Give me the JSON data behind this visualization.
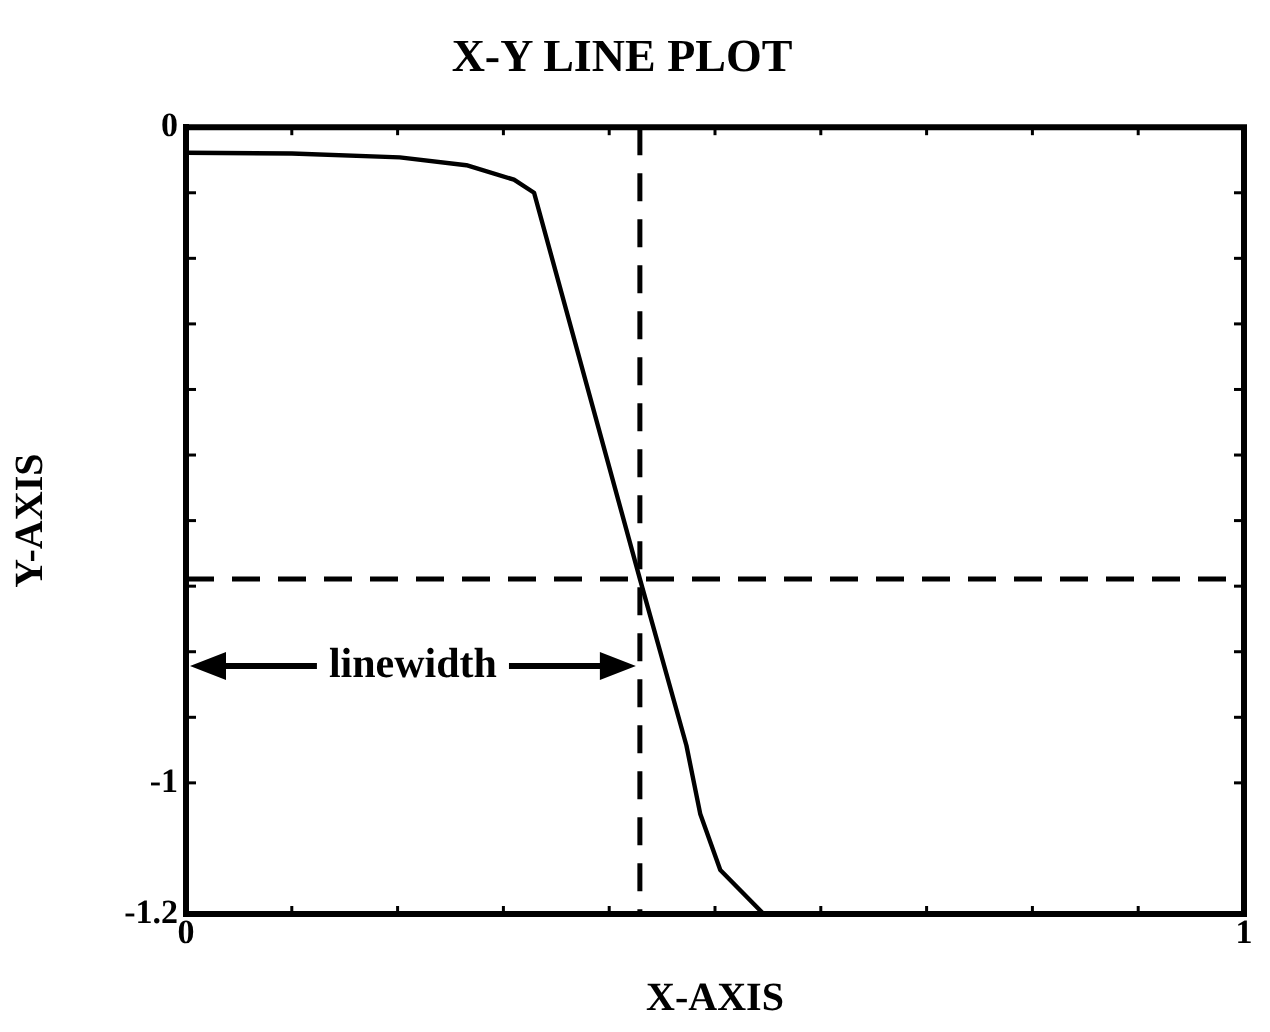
{
  "chart_data": {
    "type": "line",
    "title": "X-Y LINE PLOT",
    "xlabel": "X-AXIS",
    "ylabel": "Y-AXIS",
    "x": [
      0,
      0.1,
      0.202,
      0.265,
      0.31,
      0.329,
      0.429,
      0.473,
      0.486,
      0.505,
      0.546
    ],
    "series": [
      {
        "color": "#000000",
        "values": [
          -0.039,
          -0.04,
          -0.046,
          -0.058,
          -0.08,
          -0.1,
          -0.689,
          -0.943,
          -1.047,
          -1.133,
          -1.2
        ]
      }
    ],
    "xlim": [
      0,
      1
    ],
    "ylim": [
      -1.2,
      0
    ],
    "xticks": [
      0,
      {
        "value": 0.1,
        "label": null
      },
      {
        "value": 0.2,
        "label": null
      },
      {
        "value": 0.3,
        "label": null
      },
      {
        "value": 0.4,
        "label": null
      },
      {
        "value": 0.5,
        "label": null
      },
      {
        "value": 0.6,
        "label": null
      },
      {
        "value": 0.7,
        "label": null
      },
      {
        "value": 0.8,
        "label": null
      },
      {
        "value": 0.9,
        "label": null
      },
      1
    ],
    "yticks": [
      -1.2,
      -1,
      {
        "value": -0.9,
        "label": null
      },
      {
        "value": -0.8,
        "label": null
      },
      {
        "value": -0.7,
        "label": null
      },
      {
        "value": -0.6,
        "label": null
      },
      {
        "value": -0.5,
        "label": null
      },
      {
        "value": -0.4,
        "label": null
      },
      {
        "value": -0.3,
        "label": null
      },
      {
        "value": -0.2,
        "label": null
      },
      {
        "value": -0.1,
        "label": null
      },
      0
    ],
    "ref_lines": [
      {
        "axis": "x",
        "value": 0.429,
        "line_style": "dashed"
      },
      {
        "axis": "y",
        "value": -0.689,
        "line_style": "dashed"
      }
    ],
    "annotations": [
      "linewidth"
    ],
    "marker": "none",
    "line_style": "solid",
    "legend": false
  }
}
